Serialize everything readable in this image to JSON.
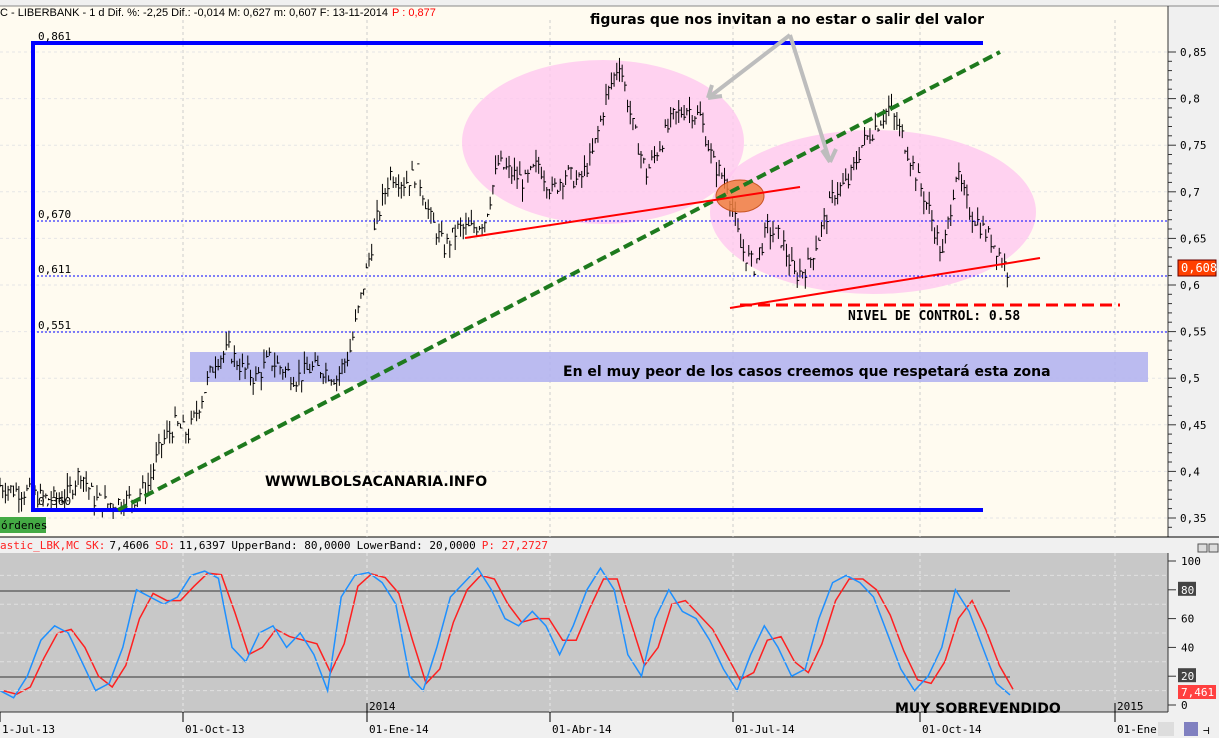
{
  "header": {
    "info": "C - LIBERBANK -  1 d Dif. %: -2,25 Dif.: -0,014 M: 0,627 m: 0,607 F: 13-11-2014",
    "price_label": "P : 0,877"
  },
  "annotations": {
    "title": "figuras que nos invitan a no estar o salir del valor",
    "zone_text": "En el muy peor de los casos creemos que respetará esta zona",
    "control_text": "NIVEL DE CONTROL: 0.58",
    "website": "WWWLBOLSACANARIA.INFO",
    "oversold": "MUY SOBREVENDIDO",
    "level_top": "0,861",
    "level_670": "0,670",
    "level_611": "0,611",
    "level_551": "0,551",
    "level_bottom": "0,360"
  },
  "orders_button": "órdenes",
  "indicator": {
    "name": "astic_LBK,MC",
    "sk_label": "SK:",
    "sk_value": "7,4606",
    "sd_label": "SD:",
    "sd_value": "11,6397",
    "upper": "UpperBand: 80,0000",
    "lower": "LowerBand: 20,0000",
    "p_label": "P: 27,2727",
    "current_badge": "7,461",
    "axis_ticks": [
      "100",
      "80",
      "60",
      "40",
      "20",
      "0"
    ]
  },
  "colors": {
    "background": "#fffbf0",
    "indicator_bg": "#c8c8c8",
    "frame_blue": "#0000ff",
    "trend_green": "#1e7a1e",
    "support_red": "#ff0000",
    "zone_blue": "#b4b4f0",
    "figure_pink": "#ffc8f0",
    "sk_blue": "#1e90ff",
    "sd_red": "#ff2020",
    "price_badge": "#ff4000"
  },
  "chart_data": [
    {
      "type": "ohlc",
      "title": "LIBERBANK 1 d",
      "ylim": [
        0.35,
        0.85
      ],
      "yticks": [
        "0,85",
        "0,8",
        "0,75",
        "0,7",
        "0,65",
        "0,6",
        "0,55",
        "0,5",
        "0,45",
        "0,4",
        "0,35"
      ],
      "current_price": "0,608",
      "x_ticks": [
        "1-Jul-13",
        "01-Oct-13",
        "01-Ene-14",
        "01-Abr-14",
        "01-Jul-14",
        "01-Oct-14",
        "01-Ene-"
      ],
      "year_markers": [
        "2014",
        "2015"
      ],
      "weekly_close": [
        0.385,
        0.38,
        0.378,
        0.372,
        0.37,
        0.375,
        0.4,
        0.37,
        0.365,
        0.368,
        0.372,
        0.385,
        0.43,
        0.45,
        0.44,
        0.48,
        0.52,
        0.53,
        0.51,
        0.5,
        0.52,
        0.51,
        0.5,
        0.51,
        0.51,
        0.5,
        0.53,
        0.6,
        0.67,
        0.72,
        0.71,
        0.72,
        0.67,
        0.64,
        0.66,
        0.66,
        0.67,
        0.73,
        0.72,
        0.71,
        0.73,
        0.7,
        0.72,
        0.71,
        0.74,
        0.8,
        0.84,
        0.77,
        0.72,
        0.75,
        0.78,
        0.79,
        0.78,
        0.73,
        0.71,
        0.64,
        0.62,
        0.66,
        0.65,
        0.61,
        0.62,
        0.66,
        0.7,
        0.71,
        0.75,
        0.77,
        0.79,
        0.76,
        0.72,
        0.68,
        0.63,
        0.72,
        0.68,
        0.66,
        0.64,
        0.61
      ]
    },
    {
      "type": "line",
      "title": "Stochastic",
      "ylim": [
        0,
        100
      ],
      "bands": [
        20,
        80
      ],
      "series": [
        {
          "name": "SK",
          "values": [
            10,
            5,
            20,
            45,
            55,
            50,
            30,
            10,
            15,
            40,
            80,
            75,
            70,
            75,
            90,
            93,
            88,
            40,
            30,
            50,
            55,
            40,
            50,
            35,
            10,
            75,
            90,
            92,
            85,
            70,
            20,
            10,
            40,
            75,
            85,
            95,
            80,
            60,
            55,
            65,
            55,
            35,
            55,
            80,
            95,
            80,
            35,
            20,
            60,
            80,
            65,
            60,
            45,
            25,
            10,
            35,
            55,
            40,
            20,
            25,
            60,
            85,
            90,
            85,
            75,
            50,
            25,
            10,
            20,
            40,
            80,
            65,
            40,
            15,
            7
          ]
        }
      ]
    }
  ]
}
